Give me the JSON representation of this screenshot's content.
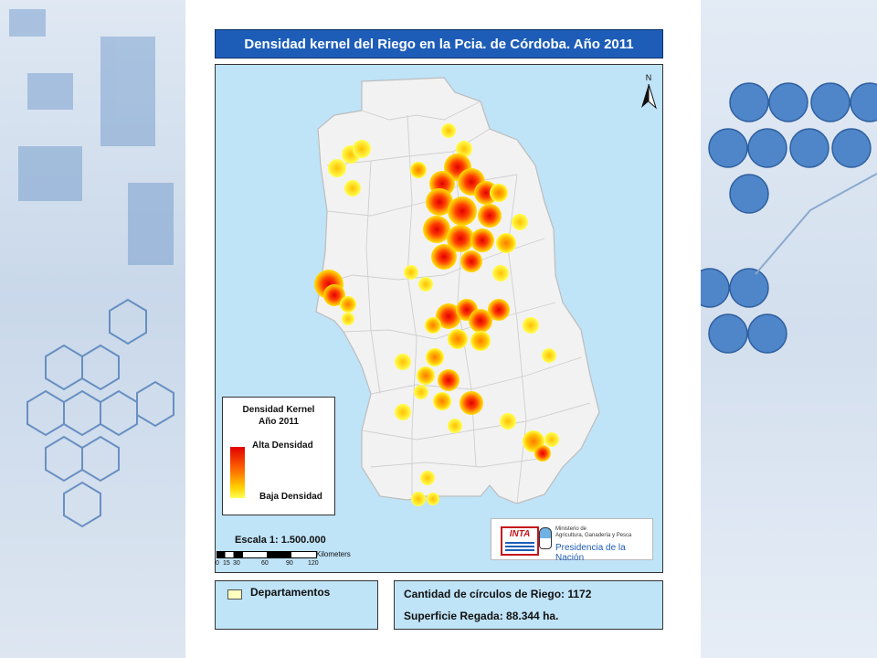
{
  "map_title": "Densidad kernel del Riego en la Pcia. de Córdoba. Año 2011",
  "north_label": "N",
  "legend": {
    "title_line1": "Densidad Kernel",
    "title_line2": "Año 2011",
    "high_label": "Alta Densidad",
    "low_label": "Baja Densidad",
    "colors": [
      "#e10000",
      "#ff6a00",
      "#ffd200",
      "#ffff55"
    ]
  },
  "scale": {
    "label": "Escala 1: 1.500.000",
    "ticks": [
      "0",
      "15",
      "30",
      "60",
      "90",
      "120"
    ],
    "unit": "Kilometers"
  },
  "logos": {
    "inta": "INTA",
    "ministry_line1": "Ministerio de",
    "ministry_line2": "Agricultura, Ganadería y Pesca",
    "presidency": "Presidencia de la Nación"
  },
  "departments_label": "Departamentos",
  "stats": {
    "circles": "Cantidad de círculos de Riego: 1172",
    "surface": "Superficie Regada: 88.344 ha."
  },
  "colors": {
    "title_bg": "#1d5db8",
    "map_bg": "#bfe3f7",
    "province_fill": "#f2f2f2",
    "department_swatch": "#ffffc0"
  }
}
